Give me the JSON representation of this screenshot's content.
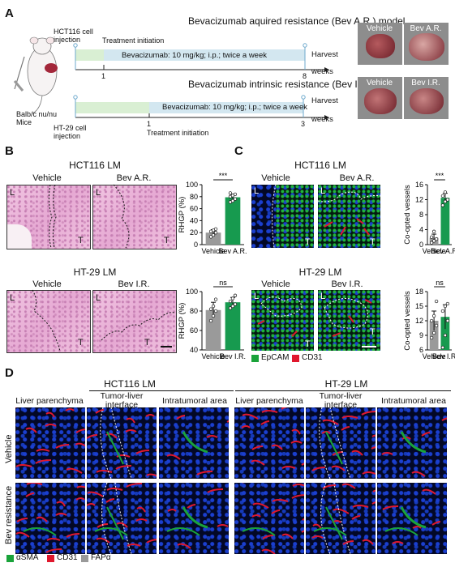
{
  "panels": {
    "A": "A",
    "B": "B",
    "C": "C",
    "D": "D"
  },
  "panelA": {
    "title1": "Bevacizumab aquired resistance (Bev A.R.) model",
    "title2": "Bevacizumab intrinsic resistance (Bev I.R.) model",
    "hct_injection": "HCT116 cell\ninjection",
    "ht_injection": "HT-29 cell\ninjection",
    "treatment1": "Treatment initiation",
    "treatment2": "Treatment initiation",
    "regimen1": "Bevacizumab: 10 mg/kg; i.p.; twice a week",
    "regimen2": "Bevacizumab: 10 mg/kg; i.p.; twice a week",
    "harvest1": "Harvest",
    "harvest2": "Harvest",
    "weeks1": "weeks",
    "weeks2": "weeks",
    "tick1_1": "1",
    "tick1_8": "8",
    "tick2_1": "1",
    "tick2_3": "3",
    "mice": "Balb/c nu/nu\nMice",
    "photo_labels": [
      "Vehicle",
      "Bev A.R.",
      "Vehicle",
      "Bev I.R."
    ]
  },
  "panelB": {
    "top_title": "HCT116 LM",
    "bottom_title": "HT-29 LM",
    "top_images": [
      "Vehicle",
      "Bev A.R."
    ],
    "bottom_images": [
      "Vehicle",
      "Bev I.R."
    ],
    "region_L": "L",
    "region_T": "T"
  },
  "panelC": {
    "top_title": "HCT116 LM",
    "bottom_title": "HT-29 LM",
    "top_images": [
      "Vehicle",
      "Bev A.R."
    ],
    "bottom_images": [
      "Vehicle",
      "Bev I.R."
    ],
    "legend": [
      {
        "label": "EpCAM",
        "color": "#1aa33a"
      },
      {
        "label": "CD31",
        "color": "#e0182d"
      }
    ]
  },
  "panelD": {
    "left_title": "HCT116 LM",
    "right_title": "HT-29 LM",
    "columns": [
      "Liver parenchyma",
      "Tumor-liver\ninterface",
      "Intratumoral area",
      "Liver parenchyma",
      "Tumor-liver\ninterface",
      "Intratumoral area"
    ],
    "rows": [
      "Vehicle",
      "Bev resistance"
    ],
    "legend": [
      {
        "label": "αSMA",
        "color": "#1aa33a"
      },
      {
        "label": "CD31",
        "color": "#e0182d"
      },
      {
        "label": "FAPα",
        "color": "#9a9a9a"
      }
    ]
  },
  "chart_data": [
    {
      "type": "bar",
      "ylabel": "RHGP (%)",
      "categories": [
        "Vehicle",
        "Bev A.R."
      ],
      "values": [
        20,
        79
      ],
      "errors": [
        5,
        5
      ],
      "ylim": [
        0,
        100
      ],
      "yticks": [
        0,
        20,
        40,
        60,
        80,
        100
      ],
      "significance": "***",
      "colors": [
        "#9a9a9a",
        "#179a4f"
      ],
      "points": [
        [
          13,
          16,
          20,
          22,
          24,
          26
        ],
        [
          71,
          73,
          76,
          80,
          82,
          84,
          86
        ]
      ]
    },
    {
      "type": "bar",
      "ylabel": "RHGP (%)",
      "categories": [
        "Vehicle",
        "Bev I.R."
      ],
      "values": [
        81,
        89
      ],
      "errors": [
        8,
        5
      ],
      "ylim": [
        40,
        100
      ],
      "yticks": [
        40,
        60,
        80,
        100
      ],
      "significance": "ns",
      "colors": [
        "#9a9a9a",
        "#179a4f"
      ],
      "points": [
        [
          70,
          75,
          80,
          82,
          85,
          92
        ],
        [
          83,
          85,
          87,
          90,
          93,
          96
        ]
      ]
    },
    {
      "type": "bar",
      "ylabel": "Co-opted vessels",
      "categories": [
        "Vehicle",
        "Bev A.R."
      ],
      "values": [
        1.8,
        12.5
      ],
      "errors": [
        1,
        1.2
      ],
      "ylim": [
        0,
        16
      ],
      "yticks": [
        0,
        4,
        8,
        12,
        16
      ],
      "significance": "***",
      "colors": [
        "#9a9a9a",
        "#179a4f"
      ],
      "points": [
        [
          0.5,
          1,
          1.5,
          2,
          3.5
        ],
        [
          10.5,
          11.5,
          12,
          13,
          14
        ]
      ]
    },
    {
      "type": "bar",
      "ylabel": "Co-opted vessels",
      "categories": [
        "Vehicle",
        "Bev I.R."
      ],
      "values": [
        12,
        12.8
      ],
      "errors": [
        2,
        2.5
      ],
      "ylim": [
        6,
        18
      ],
      "yticks": [
        6,
        9,
        12,
        15,
        18
      ],
      "significance": "ns",
      "colors": [
        "#9a9a9a",
        "#179a4f"
      ],
      "points": [
        [
          8.5,
          9.5,
          11,
          12,
          13,
          16
        ],
        [
          6.5,
          9,
          12,
          14,
          15,
          15.5
        ]
      ]
    }
  ]
}
